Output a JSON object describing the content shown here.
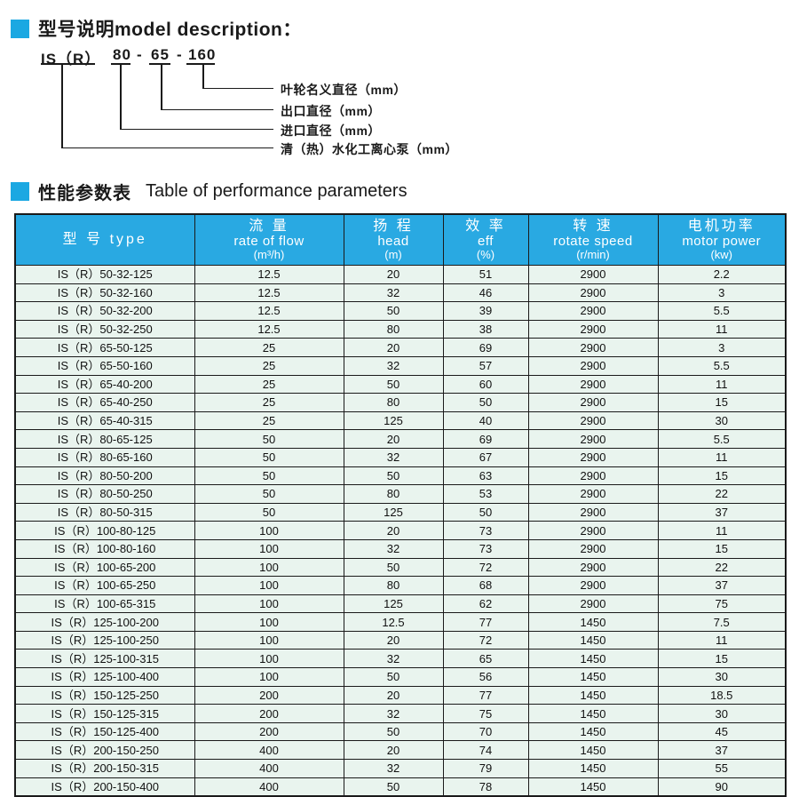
{
  "colors": {
    "accent": "#1ba8e2",
    "table_header_bg": "#29a9e2",
    "row_bg": "#e9f4ee",
    "line": "#1a1a1a"
  },
  "section1": {
    "title": "型号说明model description：",
    "marker_icon": "blue-square-icon",
    "diagram": {
      "model_example": {
        "prefix": "IS（R）",
        "num1": "80",
        "num2": "65",
        "num3": "160",
        "separator": "-"
      },
      "labels": [
        "叶轮名义直径（mm）",
        "出口直径（mm）",
        "进口直径（mm）",
        "清（热）水化工离心泵（mm）"
      ]
    }
  },
  "section2": {
    "title_zh": "性能参数表",
    "title_en": "Table of performance parameters",
    "marker_icon": "blue-square-icon"
  },
  "table": {
    "columns": [
      {
        "zh": "型 号 type",
        "en": "",
        "unit": ""
      },
      {
        "zh": "流 量",
        "en": "rate of flow",
        "unit": "(m³/h)"
      },
      {
        "zh": "扬 程",
        "en": "head",
        "unit": "(m)"
      },
      {
        "zh": "效 率",
        "en": "eff",
        "unit": "(%)"
      },
      {
        "zh": "转 速",
        "en": "rotate speed",
        "unit": "(r/min)"
      },
      {
        "zh": "电机功率",
        "en": "motor power",
        "unit": "(kw)"
      }
    ],
    "rows": [
      [
        "IS（R）50-32-125",
        "12.5",
        "20",
        "51",
        "2900",
        "2.2"
      ],
      [
        "IS（R）50-32-160",
        "12.5",
        "32",
        "46",
        "2900",
        "3"
      ],
      [
        "IS（R）50-32-200",
        "12.5",
        "50",
        "39",
        "2900",
        "5.5"
      ],
      [
        "IS（R）50-32-250",
        "12.5",
        "80",
        "38",
        "2900",
        "11"
      ],
      [
        "IS（R）65-50-125",
        "25",
        "20",
        "69",
        "2900",
        "3"
      ],
      [
        "IS（R）65-50-160",
        "25",
        "32",
        "57",
        "2900",
        "5.5"
      ],
      [
        "IS（R）65-40-200",
        "25",
        "50",
        "60",
        "2900",
        "11"
      ],
      [
        "IS（R）65-40-250",
        "25",
        "80",
        "50",
        "2900",
        "15"
      ],
      [
        "IS（R）65-40-315",
        "25",
        "125",
        "40",
        "2900",
        "30"
      ],
      [
        "IS（R）80-65-125",
        "50",
        "20",
        "69",
        "2900",
        "5.5"
      ],
      [
        "IS（R）80-65-160",
        "50",
        "32",
        "67",
        "2900",
        "11"
      ],
      [
        "IS（R）80-50-200",
        "50",
        "50",
        "63",
        "2900",
        "15"
      ],
      [
        "IS（R）80-50-250",
        "50",
        "80",
        "53",
        "2900",
        "22"
      ],
      [
        "IS（R）80-50-315",
        "50",
        "125",
        "50",
        "2900",
        "37"
      ],
      [
        "IS（R）100-80-125",
        "100",
        "20",
        "73",
        "2900",
        "11"
      ],
      [
        "IS（R）100-80-160",
        "100",
        "32",
        "73",
        "2900",
        "15"
      ],
      [
        "IS（R）100-65-200",
        "100",
        "50",
        "72",
        "2900",
        "22"
      ],
      [
        "IS（R）100-65-250",
        "100",
        "80",
        "68",
        "2900",
        "37"
      ],
      [
        "IS（R）100-65-315",
        "100",
        "125",
        "62",
        "2900",
        "75"
      ],
      [
        "IS（R）125-100-200",
        "100",
        "12.5",
        "77",
        "1450",
        "7.5"
      ],
      [
        "IS（R）125-100-250",
        "100",
        "20",
        "72",
        "1450",
        "11"
      ],
      [
        "IS（R）125-100-315",
        "100",
        "32",
        "65",
        "1450",
        "15"
      ],
      [
        "IS（R）125-100-400",
        "100",
        "50",
        "56",
        "1450",
        "30"
      ],
      [
        "IS（R）150-125-250",
        "200",
        "20",
        "77",
        "1450",
        "18.5"
      ],
      [
        "IS（R）150-125-315",
        "200",
        "32",
        "75",
        "1450",
        "30"
      ],
      [
        "IS（R）150-125-400",
        "200",
        "50",
        "70",
        "1450",
        "45"
      ],
      [
        "IS（R）200-150-250",
        "400",
        "20",
        "74",
        "1450",
        "37"
      ],
      [
        "IS（R）200-150-315",
        "400",
        "32",
        "79",
        "1450",
        "55"
      ],
      [
        "IS（R）200-150-400",
        "400",
        "50",
        "78",
        "1450",
        "90"
      ]
    ]
  }
}
